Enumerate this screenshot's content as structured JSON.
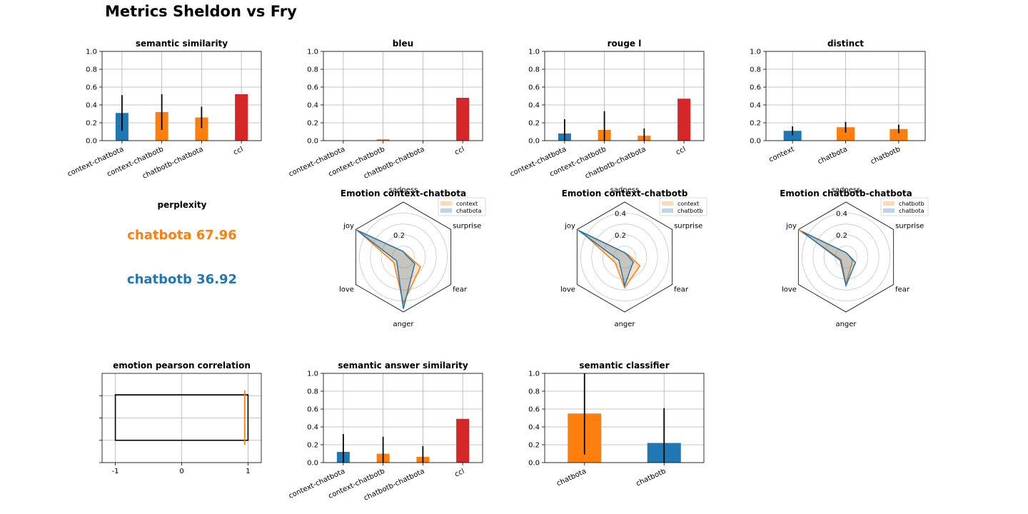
{
  "suptitle": "Metrics Sheldon vs Fry",
  "colors": {
    "blue": "#1f77b4",
    "orange": "#ff7f0e",
    "red": "#d62728"
  },
  "chart_data": [
    {
      "id": "semsim",
      "type": "bar",
      "title": "semantic similarity",
      "categories": [
        "context-chatbota",
        "context-chatbotb",
        "chatbotb-chatbota",
        "ccl"
      ],
      "values": [
        0.31,
        0.32,
        0.26,
        0.52
      ],
      "errors": [
        0.2,
        0.2,
        0.12,
        0
      ],
      "colors": [
        "blue",
        "orange",
        "orange",
        "red"
      ],
      "ylim": [
        0,
        1.0
      ],
      "yticks": [
        "0.0",
        "0.2",
        "0.4",
        "0.6",
        "0.8",
        "1.0"
      ],
      "grid": true
    },
    {
      "id": "bleu",
      "type": "bar",
      "title": "bleu",
      "categories": [
        "context-chatbota",
        "context-chatbotb",
        "chatbotb-chatbota",
        "ccl"
      ],
      "values": [
        0,
        0.015,
        0,
        0.48
      ],
      "errors": [
        0,
        0,
        0,
        0
      ],
      "colors": [
        "blue",
        "orange",
        "orange",
        "red"
      ],
      "ylim": [
        0,
        1.0
      ],
      "yticks": [
        "0.0",
        "0.2",
        "0.4",
        "0.6",
        "0.8",
        "1.0"
      ],
      "grid": true
    },
    {
      "id": "rouge",
      "type": "bar",
      "title": "rouge l",
      "categories": [
        "context-chatbota",
        "context-chatbotb",
        "chatbotb-chatbota",
        "ccl"
      ],
      "values": [
        0.08,
        0.12,
        0.055,
        0.47
      ],
      "errors": [
        0.16,
        0.21,
        0.08,
        0
      ],
      "colors": [
        "blue",
        "orange",
        "orange",
        "red"
      ],
      "ylim": [
        0,
        1.0
      ],
      "yticks": [
        "0.0",
        "0.2",
        "0.4",
        "0.6",
        "0.8",
        "1.0"
      ],
      "grid": true
    },
    {
      "id": "distinct",
      "type": "bar",
      "title": "distinct",
      "categories": [
        "context",
        "chatbota",
        "chatbotb"
      ],
      "values": [
        0.11,
        0.15,
        0.13
      ],
      "errors": [
        0.05,
        0.06,
        0.05
      ],
      "colors": [
        "blue",
        "orange",
        "orange"
      ],
      "ylim": [
        0,
        1.0
      ],
      "yticks": [
        "0.0",
        "0.2",
        "0.4",
        "0.6",
        "0.8",
        "1.0"
      ],
      "grid": true
    },
    {
      "id": "emo1",
      "type": "radar",
      "title": "Emotion context-chatbota",
      "axes": [
        "sadness",
        "surprise",
        "fear",
        "anger",
        "love",
        "joy"
      ],
      "rmax": 0.5,
      "rticks": [
        "0.2"
      ],
      "series": [
        {
          "name": "context",
          "color": "orange",
          "values": [
            0.05,
            0.04,
            0.18,
            0.42,
            0.1,
            0.48
          ]
        },
        {
          "name": "chatbota",
          "color": "blue",
          "values": [
            0.05,
            0.03,
            0.12,
            0.47,
            0.07,
            0.49
          ]
        }
      ]
    },
    {
      "id": "emo2",
      "type": "radar",
      "title": "Emotion context-chatbotb",
      "axes": [
        "sadness",
        "surprise",
        "fear",
        "anger",
        "love",
        "joy"
      ],
      "rmax": 0.5,
      "rticks": [
        "0.2",
        "0.4"
      ],
      "series": [
        {
          "name": "context",
          "color": "orange",
          "values": [
            0.04,
            0.04,
            0.16,
            0.28,
            0.1,
            0.45
          ]
        },
        {
          "name": "chatbotb",
          "color": "blue",
          "values": [
            0.04,
            0.03,
            0.09,
            0.26,
            0.06,
            0.49
          ]
        }
      ]
    },
    {
      "id": "emo3",
      "type": "radar",
      "title": "Emotion chatbotb-chatbota",
      "axes": [
        "sadness",
        "surprise",
        "fear",
        "anger",
        "love",
        "joy"
      ],
      "rmax": 0.5,
      "rticks": [
        "0.2",
        "0.4"
      ],
      "series": [
        {
          "name": "chatbotb",
          "color": "orange",
          "values": [
            0.04,
            0.03,
            0.07,
            0.25,
            0.05,
            0.5
          ]
        },
        {
          "name": "chatbota",
          "color": "blue",
          "values": [
            0.04,
            0.03,
            0.1,
            0.26,
            0.06,
            0.46
          ]
        }
      ]
    },
    {
      "id": "pearson",
      "type": "box",
      "title": "emotion pearson correlation",
      "xticks": [
        "-1",
        "0",
        "1"
      ],
      "xlim": [
        -1.2,
        1.2
      ],
      "box": [
        -1.0,
        1.0
      ],
      "line_x": 0.95,
      "grid": true
    },
    {
      "id": "semans",
      "type": "bar",
      "title": "semantic answer similarity",
      "categories": [
        "context-chatbota",
        "context-chatbotb",
        "chatbotb-chatbota",
        "ccl"
      ],
      "values": [
        0.12,
        0.1,
        0.065,
        0.49
      ],
      "errors": [
        0.2,
        0.19,
        0.12,
        0
      ],
      "colors": [
        "blue",
        "orange",
        "orange",
        "red"
      ],
      "ylim": [
        0,
        1.0
      ],
      "yticks": [
        "0.0",
        "0.2",
        "0.4",
        "0.6",
        "0.8",
        "1.0"
      ],
      "grid": true
    },
    {
      "id": "semclf",
      "type": "bar",
      "title": "semantic classifier",
      "categories": [
        "chatbota",
        "chatbotb"
      ],
      "values": [
        0.55,
        0.22
      ],
      "errors": [
        0.46,
        0.39
      ],
      "colors": [
        "orange",
        "blue"
      ],
      "ylim": [
        0,
        1.0
      ],
      "yticks": [
        "0.0",
        "0.2",
        "0.4",
        "0.6",
        "0.8",
        "1.0"
      ],
      "grid": true
    }
  ],
  "perplexity": {
    "title": "perplexity",
    "entries": [
      {
        "text": "chatbota 67.96",
        "color": "orange"
      },
      {
        "text": "chatbotb 36.92",
        "color": "blue"
      }
    ]
  }
}
